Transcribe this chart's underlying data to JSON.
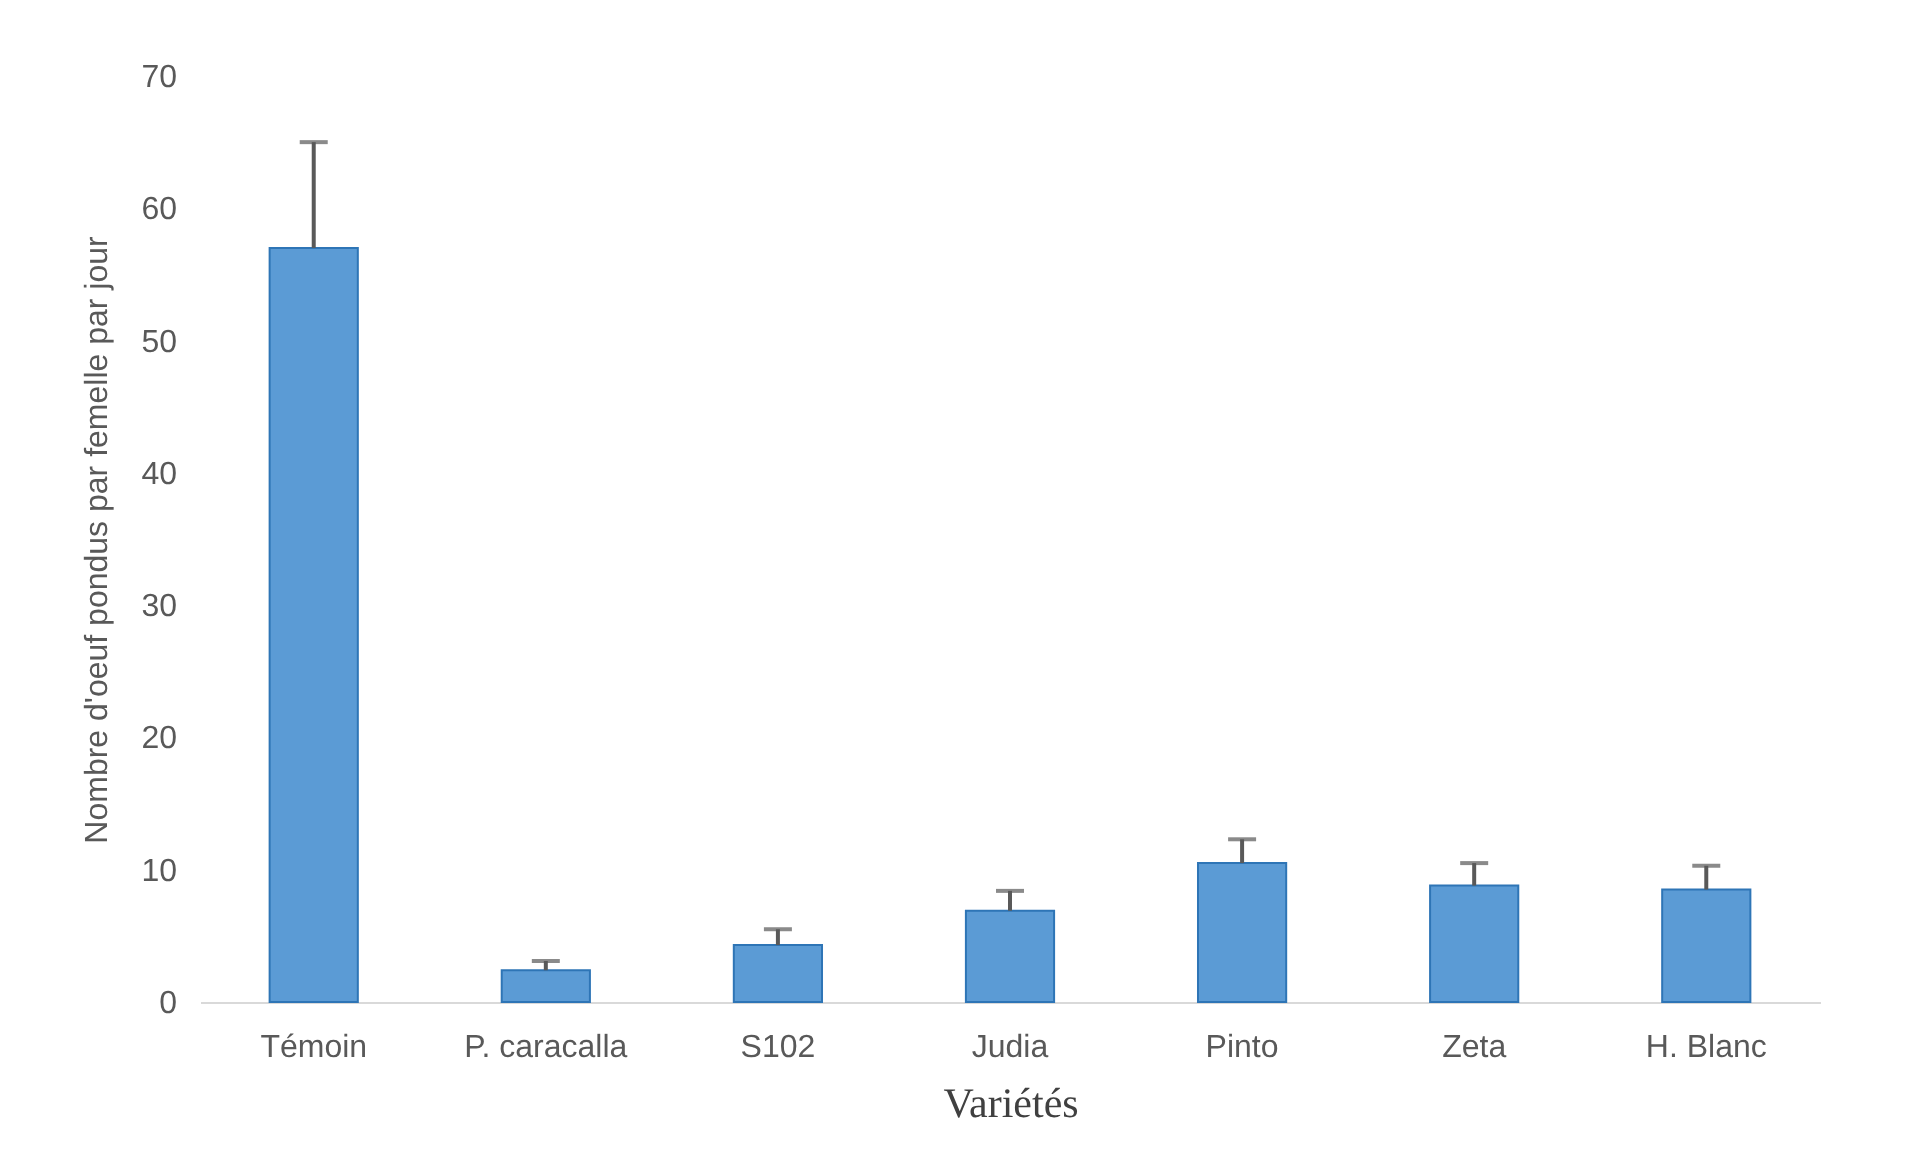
{
  "chart_data": {
    "type": "bar",
    "xlabel": "Variétés",
    "ylabel": "Nombre d'oeuf pondus par femelle par jour",
    "categories": [
      "Témoin",
      "P. caracalla",
      "S102",
      "Judia",
      "Pinto",
      "Zeta",
      "H. Blanc"
    ],
    "values": [
      57,
      2.4,
      4.3,
      6.9,
      10.5,
      8.8,
      8.5
    ],
    "errors": [
      [
        57,
        65
      ],
      [
        2.4,
        3.1
      ],
      [
        4.3,
        5.5
      ],
      [
        6.9,
        8.4
      ],
      [
        10.5,
        12.3
      ],
      [
        8.8,
        10.5
      ],
      [
        8.5,
        10.3
      ]
    ],
    "color": "#5b9bd5",
    "ylim": [
      0,
      70
    ],
    "yticks": [
      0,
      10,
      20,
      30,
      40,
      50,
      60,
      70
    ],
    "grid": false
  }
}
